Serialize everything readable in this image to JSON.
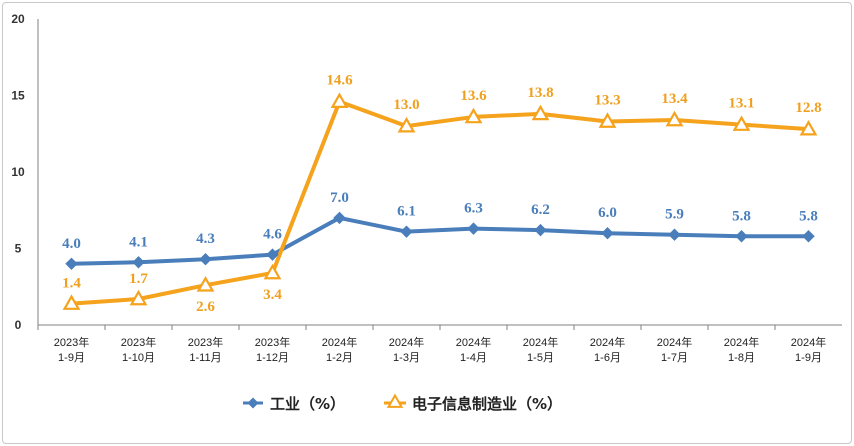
{
  "chart_data": {
    "type": "line",
    "title": "",
    "xlabel": "",
    "ylabel": "",
    "ylim": [
      0,
      20
    ],
    "yticks": [
      0,
      5,
      10,
      15,
      20
    ],
    "grid": false,
    "legend_position": "bottom",
    "categories": [
      [
        "2023年",
        "1-9月"
      ],
      [
        "2023年",
        "1-10月"
      ],
      [
        "2023年",
        "1-11月"
      ],
      [
        "2023年",
        "1-12月"
      ],
      [
        "2024年",
        "1-2月"
      ],
      [
        "2024年",
        "1-3月"
      ],
      [
        "2024年",
        "1-4月"
      ],
      [
        "2024年",
        "1-5月"
      ],
      [
        "2024年",
        "1-6月"
      ],
      [
        "2024年",
        "1-7月"
      ],
      [
        "2024年",
        "1-8月"
      ],
      [
        "2024年",
        "1-9月"
      ]
    ],
    "series": [
      {
        "name": "工业（%）",
        "marker": "diamond",
        "color": "#4a7ebb",
        "values": [
          4.0,
          4.1,
          4.3,
          4.6,
          7.0,
          6.1,
          6.3,
          6.2,
          6.0,
          5.9,
          5.8,
          5.8
        ],
        "labels": [
          "4.0",
          "4.1",
          "4.3",
          "4.6",
          "7.0",
          "6.1",
          "6.3",
          "6.2",
          "6.0",
          "5.9",
          "5.8",
          "5.8"
        ]
      },
      {
        "name": "电子信息制造业（%）",
        "marker": "triangle",
        "color": "#f5a21d",
        "values": [
          1.4,
          1.7,
          2.6,
          3.4,
          14.6,
          13.0,
          13.6,
          13.8,
          13.3,
          13.4,
          13.1,
          12.8
        ],
        "labels": [
          "1.4",
          "1.7",
          "2.6",
          "3.4",
          "14.6",
          "13.0",
          "13.6",
          "13.8",
          "13.3",
          "13.4",
          "13.1",
          "12.8"
        ]
      }
    ]
  }
}
